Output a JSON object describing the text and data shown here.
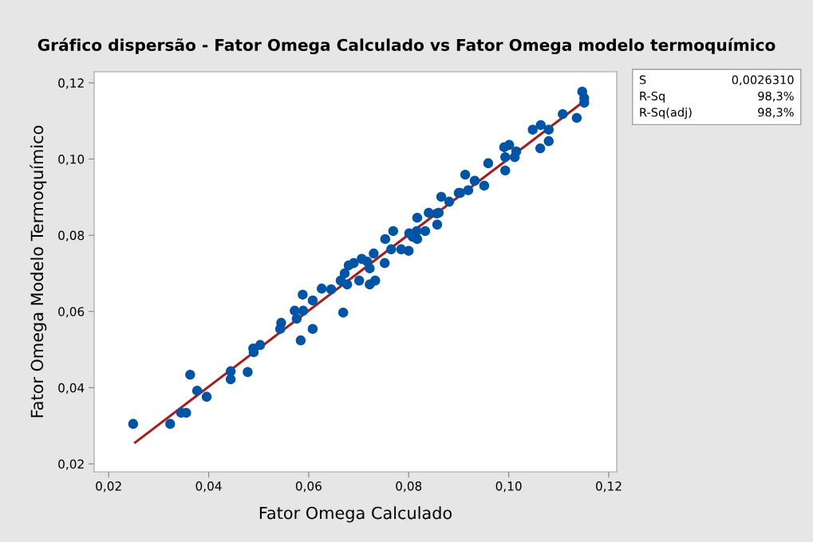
{
  "chart_data": {
    "type": "scatter",
    "title": "Gráfico dispersão - Fator Omega Calculado vs Fator Omega modelo termoquímico",
    "xlabel": "Fator Omega Calculado",
    "ylabel": "Fator Omega Modelo Termoquímico",
    "xlim": [
      0.0171,
      0.1216
    ],
    "ylim": [
      0.0179,
      0.1229
    ],
    "xticks": [
      {
        "value": 0.02,
        "label": "0,02"
      },
      {
        "value": 0.04,
        "label": "0,04"
      },
      {
        "value": 0.06,
        "label": "0,06"
      },
      {
        "value": 0.08,
        "label": "0,08"
      },
      {
        "value": 0.1,
        "label": "0,10"
      },
      {
        "value": 0.12,
        "label": "0,12"
      }
    ],
    "yticks": [
      {
        "value": 0.02,
        "label": "0,02"
      },
      {
        "value": 0.04,
        "label": "0,04"
      },
      {
        "value": 0.06,
        "label": "0,06"
      },
      {
        "value": 0.08,
        "label": "0,08"
      },
      {
        "value": 0.1,
        "label": "0,10"
      },
      {
        "value": 0.12,
        "label": "0,12"
      }
    ],
    "grid": false,
    "legend": false,
    "series": [
      {
        "marker": "circle",
        "color": "#0054a6",
        "x": [
          0.0249,
          0.0323,
          0.0345,
          0.0355,
          0.0363,
          0.0377,
          0.0396,
          0.0444,
          0.0444,
          0.0478,
          0.0489,
          0.049,
          0.0503,
          0.0545,
          0.0543,
          0.0576,
          0.0572,
          0.0588,
          0.0589,
          0.0608,
          0.0626,
          0.0645,
          0.0664,
          0.0672,
          0.068,
          0.069,
          0.0677,
          0.0701,
          0.0706,
          0.0717,
          0.073,
          0.0722,
          0.0733,
          0.0722,
          0.0752,
          0.0669,
          0.0608,
          0.0584,
          0.0753,
          0.0769,
          0.0765,
          0.0785,
          0.08,
          0.0808,
          0.0817,
          0.0816,
          0.0833,
          0.0817,
          0.084,
          0.0856,
          0.0857,
          0.0865,
          0.0881,
          0.0903,
          0.0801,
          0.086,
          0.0913,
          0.0932,
          0.0951,
          0.0919,
          0.09,
          0.0959,
          0.0991,
          0.1001,
          0.1015,
          0.0993,
          0.1012,
          0.0993,
          0.1048,
          0.1064,
          0.108,
          0.108,
          0.1063,
          0.1108,
          0.1136,
          0.1147,
          0.1151,
          0.1151
        ],
        "values": [
          0.0305,
          0.0305,
          0.0334,
          0.0334,
          0.0434,
          0.0392,
          0.0376,
          0.0443,
          0.0422,
          0.0441,
          0.0503,
          0.0493,
          0.0512,
          0.057,
          0.0554,
          0.0581,
          0.0602,
          0.0644,
          0.0602,
          0.0629,
          0.066,
          0.0658,
          0.0681,
          0.07,
          0.0721,
          0.0727,
          0.0671,
          0.0681,
          0.0738,
          0.0731,
          0.0752,
          0.0713,
          0.0681,
          0.0671,
          0.0727,
          0.0597,
          0.0554,
          0.0524,
          0.079,
          0.0811,
          0.0763,
          0.0763,
          0.0759,
          0.0796,
          0.079,
          0.0811,
          0.0811,
          0.0846,
          0.0859,
          0.0857,
          0.0828,
          0.0901,
          0.0888,
          0.0911,
          0.0805,
          0.0859,
          0.0959,
          0.0943,
          0.093,
          0.0918,
          0.0911,
          0.0989,
          0.1031,
          0.1037,
          0.102,
          0.1005,
          0.1005,
          0.097,
          0.1077,
          0.1089,
          0.1077,
          0.1047,
          0.1028,
          0.1118,
          0.1108,
          0.1177,
          0.116,
          0.1148
        ]
      },
      {
        "type": "line",
        "marker": "none",
        "color": "#a31e1e",
        "x": [
          0.0253,
          0.1143
        ],
        "values": [
          0.0256,
          0.1144
        ]
      }
    ],
    "annotations": [
      "S",
      "0,0026310",
      "R-Sq",
      "98,3%",
      "R-Sq(adj)",
      "98,3%"
    ]
  }
}
